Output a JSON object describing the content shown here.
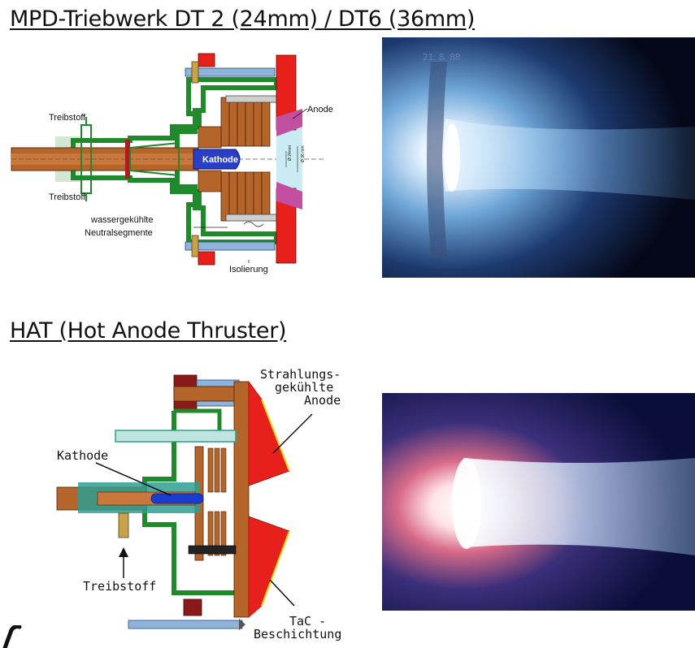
{
  "section1": {
    "title": "MPD-Triebwerk DT 2 (24mm) / DT6 (36mm)",
    "labels": {
      "anode": "Anode",
      "propellant_top": "Treibstoff",
      "propellant_bottom": "Treibstoff",
      "cathode": "Kathode",
      "segments_line1": "wassergekühlte",
      "segments_line2": "Neutralsegmente",
      "insulation": "Isolierung",
      "dim_24": "Ø 24mm",
      "dim_36": "Ø 36 mm"
    },
    "photo_overlay": "21  8  88"
  },
  "section2": {
    "title": "HAT (Hot Anode Thruster)",
    "labels": {
      "anode_line1": "Strahlungs-",
      "anode_line2": "gekühlte",
      "anode_line3": "Anode",
      "cathode": "Kathode",
      "propellant": "Treibstoff",
      "coating_line1": "TaC -",
      "coating_line2": "Beschichtung"
    }
  },
  "colors": {
    "copper": "#b5652a",
    "green": "#1f8a2a",
    "red": "#e8201c",
    "steelblue": "#8fb4dc",
    "teal": "#2f9d92",
    "cathode_blue": "#1a3fd0",
    "dark_red": "#8a1a1a"
  }
}
